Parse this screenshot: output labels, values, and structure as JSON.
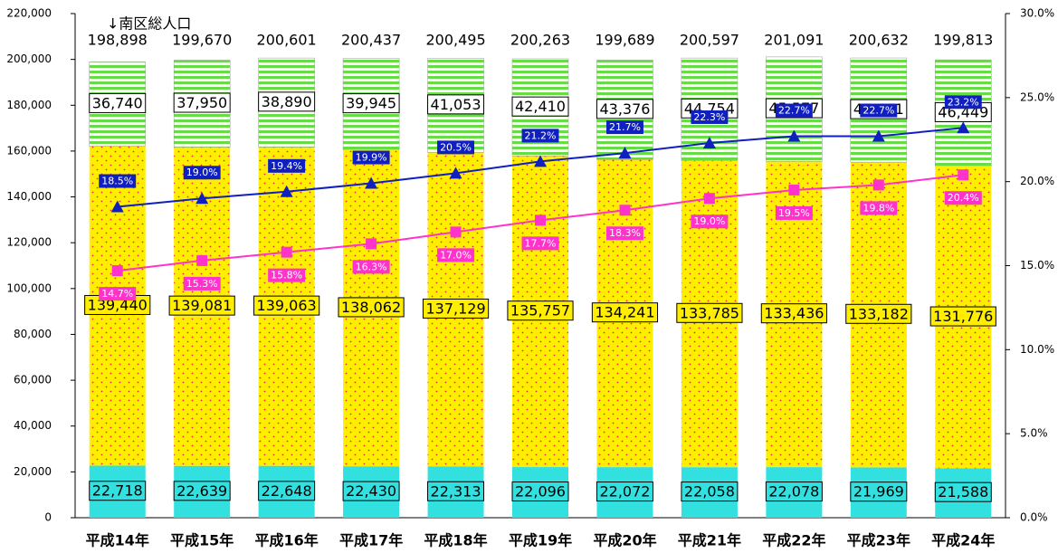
{
  "chart_data": {
    "type": "stacked-bar-line",
    "annotation": "↓南区総人口",
    "categories": [
      "平成14年",
      "平成15年",
      "平成16年",
      "平成17年",
      "平成18年",
      "平成19年",
      "平成20年",
      "平成21年",
      "平成22年",
      "平成23年",
      "平成24年"
    ],
    "series": [
      {
        "color": "#33e0e0",
        "values": [
          22718,
          22639,
          22648,
          22430,
          22313,
          22096,
          22072,
          22058,
          22078,
          21969,
          21588
        ],
        "value_labels": [
          "22,718",
          "22,639",
          "22,648",
          "22,430",
          "22,313",
          "22,096",
          "22,072",
          "22,058",
          "22,078",
          "21,969",
          "21,588"
        ]
      },
      {
        "color": "#ffee00",
        "values": [
          139440,
          139081,
          139063,
          138062,
          137129,
          135757,
          134241,
          133785,
          133436,
          133182,
          131776
        ],
        "value_labels": [
          "139,440",
          "139,081",
          "139,063",
          "138,062",
          "137,129",
          "135,757",
          "134,241",
          "133,785",
          "133,436",
          "133,182",
          "131,776"
        ]
      },
      {
        "color": "#66dd44",
        "values": [
          36740,
          37950,
          38890,
          39945,
          41053,
          42410,
          43376,
          44754,
          45577,
          45481,
          46449
        ],
        "value_labels": [
          "36,740",
          "37,950",
          "38,890",
          "39,945",
          "41,053",
          "42,410",
          "43,376",
          "44,754",
          "45,577",
          "45,481",
          "46,449"
        ]
      },
      {
        "color": "#1020c0",
        "axis": "y2",
        "values": [
          18.5,
          19.0,
          19.4,
          19.9,
          20.5,
          21.2,
          21.7,
          22.3,
          22.7,
          22.7,
          23.2
        ],
        "value_labels": [
          "18.5%",
          "19.0%",
          "19.4%",
          "19.9%",
          "20.5%",
          "21.2%",
          "21.7%",
          "22.3%",
          "22.7%",
          "22.7%",
          "23.2%"
        ]
      },
      {
        "color": "#ff33cc",
        "axis": "y2",
        "values": [
          14.7,
          15.3,
          15.8,
          16.3,
          17.0,
          17.7,
          18.3,
          19.0,
          19.5,
          19.8,
          20.4
        ],
        "value_labels": [
          "14.7%",
          "15.3%",
          "15.8%",
          "16.3%",
          "17.0%",
          "17.7%",
          "18.3%",
          "19.0%",
          "19.5%",
          "19.8%",
          "20.4%"
        ]
      }
    ],
    "totals": [
      198898,
      199670,
      200601,
      200437,
      200495,
      200263,
      199689,
      200597,
      201091,
      200632,
      199813
    ],
    "total_labels": [
      "198,898",
      "199,670",
      "200,601",
      "200,437",
      "200,495",
      "200,263",
      "199,689",
      "200,597",
      "201,091",
      "200,632",
      "199,813"
    ],
    "ylim": [
      0,
      220000
    ],
    "yticks": [
      0,
      {
        "value": 20000,
        "label": "20,000"
      },
      {
        "value": 40000,
        "label": "40,000"
      },
      {
        "value": 60000,
        "label": "60,000"
      },
      {
        "value": 80000,
        "label": "80,000"
      },
      {
        "value": 100000,
        "label": "100,000"
      },
      {
        "value": 120000,
        "label": "120,000"
      },
      {
        "value": 140000,
        "label": "140,000"
      },
      {
        "value": 160000,
        "label": "160,000"
      },
      {
        "value": 180000,
        "label": "180,000"
      },
      {
        "value": 200000,
        "label": "200,000"
      },
      {
        "value": 220000,
        "label": "220,000"
      }
    ],
    "y2lim": [
      0,
      30
    ],
    "y2ticks": [
      {
        "value": 0,
        "label": "0.0%"
      },
      {
        "value": 5,
        "label": "5.0%"
      },
      {
        "value": 10,
        "label": "10.0%"
      },
      {
        "value": 15,
        "label": "15.0%"
      },
      {
        "value": 20,
        "label": "20.0%"
      },
      {
        "value": 25,
        "label": "25.0%"
      },
      {
        "value": 30,
        "label": "30.0%"
      }
    ]
  }
}
